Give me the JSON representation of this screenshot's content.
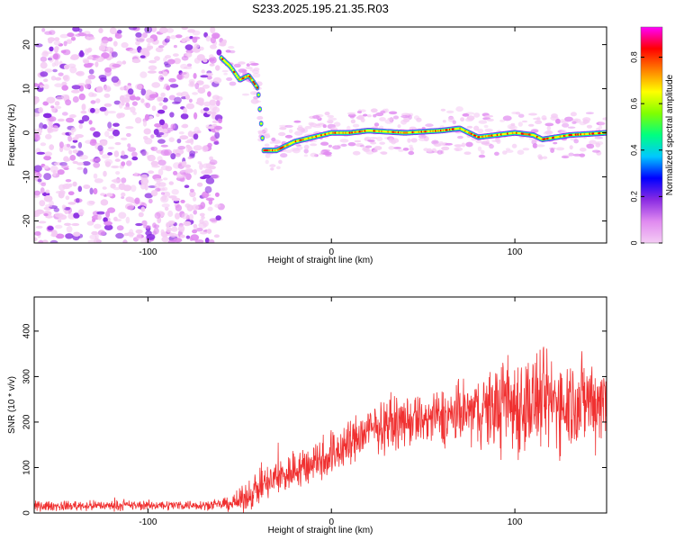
{
  "title": "S233.2025.195.21.35.R03",
  "chart_data": [
    {
      "type": "heatmap",
      "xlabel": "Height of straight line (km)",
      "ylabel": "Frequency (Hz)",
      "xlim": [
        -162,
        150
      ],
      "ylim": [
        -25,
        24
      ],
      "xticks": [
        -100,
        0,
        100
      ],
      "yticks": [
        -20,
        -10,
        0,
        10,
        20
      ],
      "colorbar": {
        "label": "Normalized spectral amplitude",
        "range": [
          0.0,
          0.93
        ],
        "ticks": [
          0.0,
          0.2,
          0.4,
          0.6,
          0.8
        ],
        "colormap": [
          "#f4ccf4",
          "#e08af0",
          "#8a2be2",
          "#0000ff",
          "#00c8ff",
          "#00ff80",
          "#80ff00",
          "#ffff00",
          "#ff8000",
          "#ff0000",
          "#ff00ff"
        ]
      },
      "noise_region_x": [
        -162,
        -60
      ],
      "signal_track": [
        {
          "x": -60,
          "y": 17
        },
        {
          "x": -55,
          "y": 15
        },
        {
          "x": -50,
          "y": 12
        },
        {
          "x": -45,
          "y": 13
        },
        {
          "x": -40,
          "y": 10
        },
        {
          "x": -37,
          "y": -4
        },
        {
          "x": -30,
          "y": -4
        },
        {
          "x": -20,
          "y": -2
        },
        {
          "x": -10,
          "y": -1
        },
        {
          "x": 0,
          "y": 0
        },
        {
          "x": 10,
          "y": 0
        },
        {
          "x": 20,
          "y": 0.5
        },
        {
          "x": 40,
          "y": 0
        },
        {
          "x": 60,
          "y": 0.5
        },
        {
          "x": 70,
          "y": 1
        },
        {
          "x": 80,
          "y": -1
        },
        {
          "x": 90,
          "y": -0.5
        },
        {
          "x": 100,
          "y": 0
        },
        {
          "x": 110,
          "y": -0.5
        },
        {
          "x": 115,
          "y": -1.5
        },
        {
          "x": 130,
          "y": -0.5
        },
        {
          "x": 150,
          "y": 0
        }
      ]
    },
    {
      "type": "line",
      "xlabel": "Height of straight line (km)",
      "ylabel": "SNR (10 * v/v)",
      "xlim": [
        -162,
        150
      ],
      "ylim": [
        0,
        475
      ],
      "xticks": [
        -100,
        0,
        100
      ],
      "yticks": [
        0,
        100,
        200,
        300,
        400
      ],
      "color": "#f03030",
      "trend": [
        {
          "x": -162,
          "y": 15
        },
        {
          "x": -60,
          "y": 18
        },
        {
          "x": -50,
          "y": 25
        },
        {
          "x": -40,
          "y": 55
        },
        {
          "x": -30,
          "y": 75
        },
        {
          "x": -20,
          "y": 95
        },
        {
          "x": -10,
          "y": 110
        },
        {
          "x": 0,
          "y": 130
        },
        {
          "x": 10,
          "y": 155
        },
        {
          "x": 20,
          "y": 180
        },
        {
          "x": 30,
          "y": 195
        },
        {
          "x": 40,
          "y": 200
        },
        {
          "x": 60,
          "y": 210
        },
        {
          "x": 80,
          "y": 225
        },
        {
          "x": 100,
          "y": 240
        },
        {
          "x": 120,
          "y": 245
        },
        {
          "x": 150,
          "y": 250
        }
      ],
      "spread": [
        {
          "x": -162,
          "y": 8
        },
        {
          "x": -60,
          "y": 8
        },
        {
          "x": -40,
          "y": 30
        },
        {
          "x": 0,
          "y": 40
        },
        {
          "x": 40,
          "y": 40
        },
        {
          "x": 80,
          "y": 55
        },
        {
          "x": 100,
          "y": 90
        },
        {
          "x": 120,
          "y": 80
        },
        {
          "x": 150,
          "y": 75
        }
      ]
    }
  ]
}
